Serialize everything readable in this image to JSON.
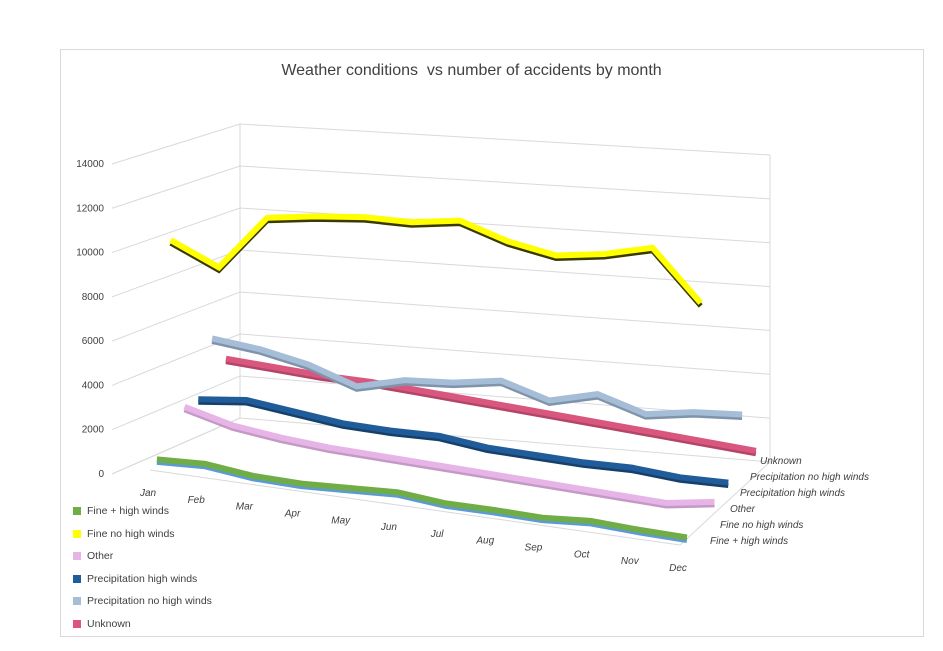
{
  "chart_data": {
    "type": "line",
    "title": "Weather conditions  vs number of accidents by month",
    "categories": [
      "Jan",
      "Feb",
      "Mar",
      "Apr",
      "May",
      "Jun",
      "Jul",
      "Aug",
      "Sep",
      "Oct",
      "Nov",
      "Dec"
    ],
    "y_ticks": [
      "0",
      "2000",
      "4000",
      "6000",
      "8000",
      "10000",
      "12000",
      "14000"
    ],
    "ylim": [
      0,
      14000
    ],
    "grid": true,
    "legend_position": "bottom-left",
    "series": [
      {
        "name": "Fine + high winds",
        "color": "#70ad47",
        "edge": "#5b9bd5",
        "values": [
          300,
          400,
          150,
          100,
          200,
          300,
          100,
          100,
          50,
          200,
          100,
          50
        ]
      },
      {
        "name": "Fine no high winds",
        "color": "#ffff00",
        "edge": "#3a3a00",
        "values": [
          10000,
          9000,
          11500,
          11800,
          12000,
          12000,
          12300,
          11600,
          11200,
          11500,
          12000,
          9800
        ]
      },
      {
        "name": "Other",
        "color": "#e7b4e7",
        "edge": "#c49ac4",
        "values": [
          2000,
          1400,
          1100,
          900,
          800,
          700,
          600,
          500,
          400,
          300,
          200,
          500
        ]
      },
      {
        "name": "Precipitation  high winds",
        "color": "#1f5c99",
        "edge": "#163f6a",
        "values": [
          2000,
          2200,
          1900,
          1600,
          1500,
          1500,
          1200,
          1100,
          1000,
          1000,
          800,
          800
        ]
      },
      {
        "name": "Precipitation no high winds",
        "color": "#a5bdd6",
        "edge": "#7f93ab",
        "values": [
          4500,
          4200,
          3700,
          2900,
          3400,
          3500,
          3800,
          3100,
          3600,
          2900,
          3200,
          3300
        ]
      },
      {
        "name": "Unknown",
        "color": "#d9577e",
        "edge": "#b24568",
        "values": [
          3200,
          3000,
          2800,
          2700,
          2500,
          2300,
          2100,
          1900,
          1700,
          1500,
          1300,
          1100
        ]
      }
    ],
    "depth_axis_labels": [
      "Unknown",
      "Precipitation no high winds",
      "Precipitation  high winds",
      "Other",
      "Fine no high winds",
      "Fine + high winds"
    ]
  }
}
